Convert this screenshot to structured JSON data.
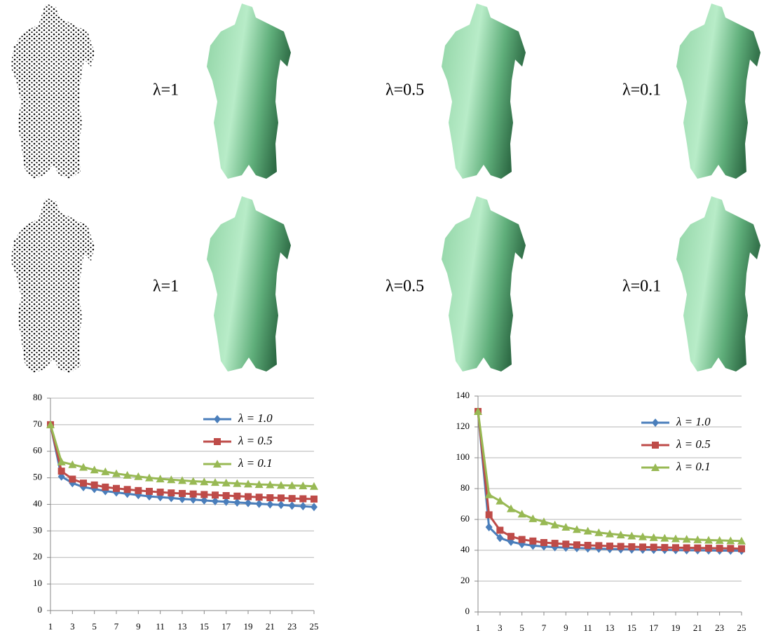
{
  "panels": [
    {
      "labels": [
        "λ=1",
        "λ=0.5",
        "λ=0.1"
      ]
    },
    {
      "labels": [
        "λ=1",
        "λ=0.5",
        "λ=0.1"
      ]
    }
  ],
  "chart_data": [
    {
      "type": "line",
      "x": [
        1,
        2,
        3,
        4,
        5,
        6,
        7,
        8,
        9,
        10,
        11,
        12,
        13,
        14,
        15,
        16,
        17,
        18,
        19,
        20,
        21,
        22,
        23,
        24,
        25
      ],
      "xlim": [
        1,
        25
      ],
      "xticks": [
        1,
        3,
        5,
        7,
        9,
        11,
        13,
        15,
        17,
        19,
        21,
        23,
        25
      ],
      "ylim": [
        0,
        80
      ],
      "yticks": [
        0,
        10,
        20,
        30,
        40,
        50,
        60,
        70,
        80
      ],
      "grid": true,
      "legend": "upper right",
      "series": [
        {
          "name": "λ = 1.0",
          "color": "#4a7ebb",
          "marker": "diamond",
          "values": [
            70,
            50.5,
            48,
            46.5,
            45.8,
            45,
            44.5,
            44,
            43.5,
            43,
            42.7,
            42.4,
            42,
            41.8,
            41.5,
            41.2,
            41,
            40.7,
            40.5,
            40.2,
            40,
            39.8,
            39.5,
            39.3,
            39
          ]
        },
        {
          "name": "λ = 0.5",
          "color": "#be4b48",
          "marker": "square",
          "values": [
            70,
            52.5,
            49.5,
            48,
            47.3,
            46.5,
            46,
            45.6,
            45.2,
            44.9,
            44.6,
            44.3,
            44.1,
            43.9,
            43.7,
            43.5,
            43.3,
            43.1,
            42.9,
            42.7,
            42.5,
            42.4,
            42.2,
            42.1,
            42
          ]
        },
        {
          "name": "λ = 0.1",
          "color": "#98b954",
          "marker": "triangle",
          "values": [
            70,
            56,
            55,
            54,
            53,
            52.3,
            51.6,
            51,
            50.5,
            50,
            49.6,
            49.3,
            49,
            48.7,
            48.5,
            48.3,
            48.1,
            47.9,
            47.7,
            47.5,
            47.4,
            47.2,
            47.1,
            47,
            46.8
          ]
        }
      ]
    },
    {
      "type": "line",
      "x": [
        1,
        2,
        3,
        4,
        5,
        6,
        7,
        8,
        9,
        10,
        11,
        12,
        13,
        14,
        15,
        16,
        17,
        18,
        19,
        20,
        21,
        22,
        23,
        24,
        25
      ],
      "xlim": [
        1,
        25
      ],
      "xticks": [
        1,
        3,
        5,
        7,
        9,
        11,
        13,
        15,
        17,
        19,
        21,
        23,
        25
      ],
      "ylim": [
        0,
        140
      ],
      "yticks": [
        0,
        20,
        40,
        60,
        80,
        100,
        120,
        140
      ],
      "grid": true,
      "legend": "upper right",
      "series": [
        {
          "name": "λ = 1.0",
          "color": "#4a7ebb",
          "marker": "diamond",
          "values": [
            130,
            55,
            48,
            45.5,
            44,
            43,
            42.5,
            42,
            41.7,
            41.4,
            41.2,
            41,
            40.8,
            40.6,
            40.5,
            40.4,
            40.3,
            40.2,
            40.1,
            40,
            40,
            39.9,
            39.8,
            39.8,
            39.7
          ]
        },
        {
          "name": "λ = 0.5",
          "color": "#be4b48",
          "marker": "square",
          "values": [
            130,
            63,
            53,
            49,
            47,
            46,
            45,
            44.5,
            44,
            43.5,
            43.2,
            43,
            42.7,
            42.5,
            42.3,
            42.1,
            42,
            41.8,
            41.7,
            41.6,
            41.5,
            41.4,
            41.3,
            41.2,
            41
          ]
        },
        {
          "name": "λ = 0.1",
          "color": "#98b954",
          "marker": "triangle",
          "values": [
            130,
            76,
            72,
            67,
            63.5,
            60.5,
            58.5,
            56.5,
            55,
            53.5,
            52.5,
            51.5,
            50.7,
            50,
            49.3,
            48.8,
            48.3,
            47.9,
            47.5,
            47.2,
            46.9,
            46.6,
            46.4,
            46.2,
            46
          ]
        }
      ]
    }
  ]
}
